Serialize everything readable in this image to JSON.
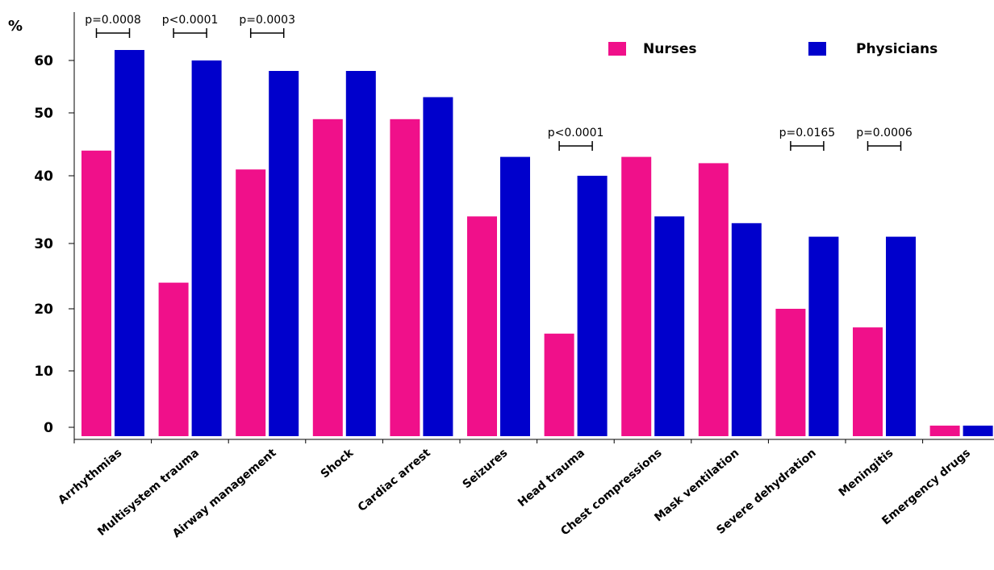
{
  "chart_data": {
    "type": "bar",
    "title": "",
    "xlabel": "",
    "ylabel": "%",
    "ylim": [
      0,
      60
    ],
    "y_ticks": [
      0,
      10,
      20,
      30,
      40,
      50,
      60
    ],
    "categories": [
      "Arrhythmias",
      "Multisystem trauma",
      "Airway management",
      "Shock",
      "Cardiac arrest",
      "Seizures",
      "Head trauma",
      "Chest compressions",
      "Mask ventilation",
      "Severe dehydration",
      "Meningitis",
      "Emergency drugs"
    ],
    "series": [
      {
        "name": "Nurses",
        "color": "#f0108a",
        "values": [
          44,
          24,
          41,
          49,
          49,
          34,
          16,
          43,
          42,
          20,
          17,
          0.3
        ]
      },
      {
        "name": "Physicians",
        "color": "#0000cc",
        "values": [
          62,
          60,
          58,
          58,
          53,
          43,
          40,
          34,
          33,
          31,
          31,
          0.3
        ]
      }
    ],
    "legend": {
      "position": "top-right",
      "entries": [
        "Nurses",
        "Physicians"
      ]
    },
    "grid": false,
    "annotations": [
      {
        "category": "Arrhythmias",
        "text": "p=0.0008"
      },
      {
        "category": "Multisystem trauma",
        "text": "p<0.0001"
      },
      {
        "category": "Airway management",
        "text": "p=0.0003"
      },
      {
        "category": "Head trauma",
        "text": "p<0.0001"
      },
      {
        "category": "Severe dehydration",
        "text": "p=0.0165"
      },
      {
        "category": "Meningitis",
        "text": "p=0.0006"
      }
    ]
  }
}
